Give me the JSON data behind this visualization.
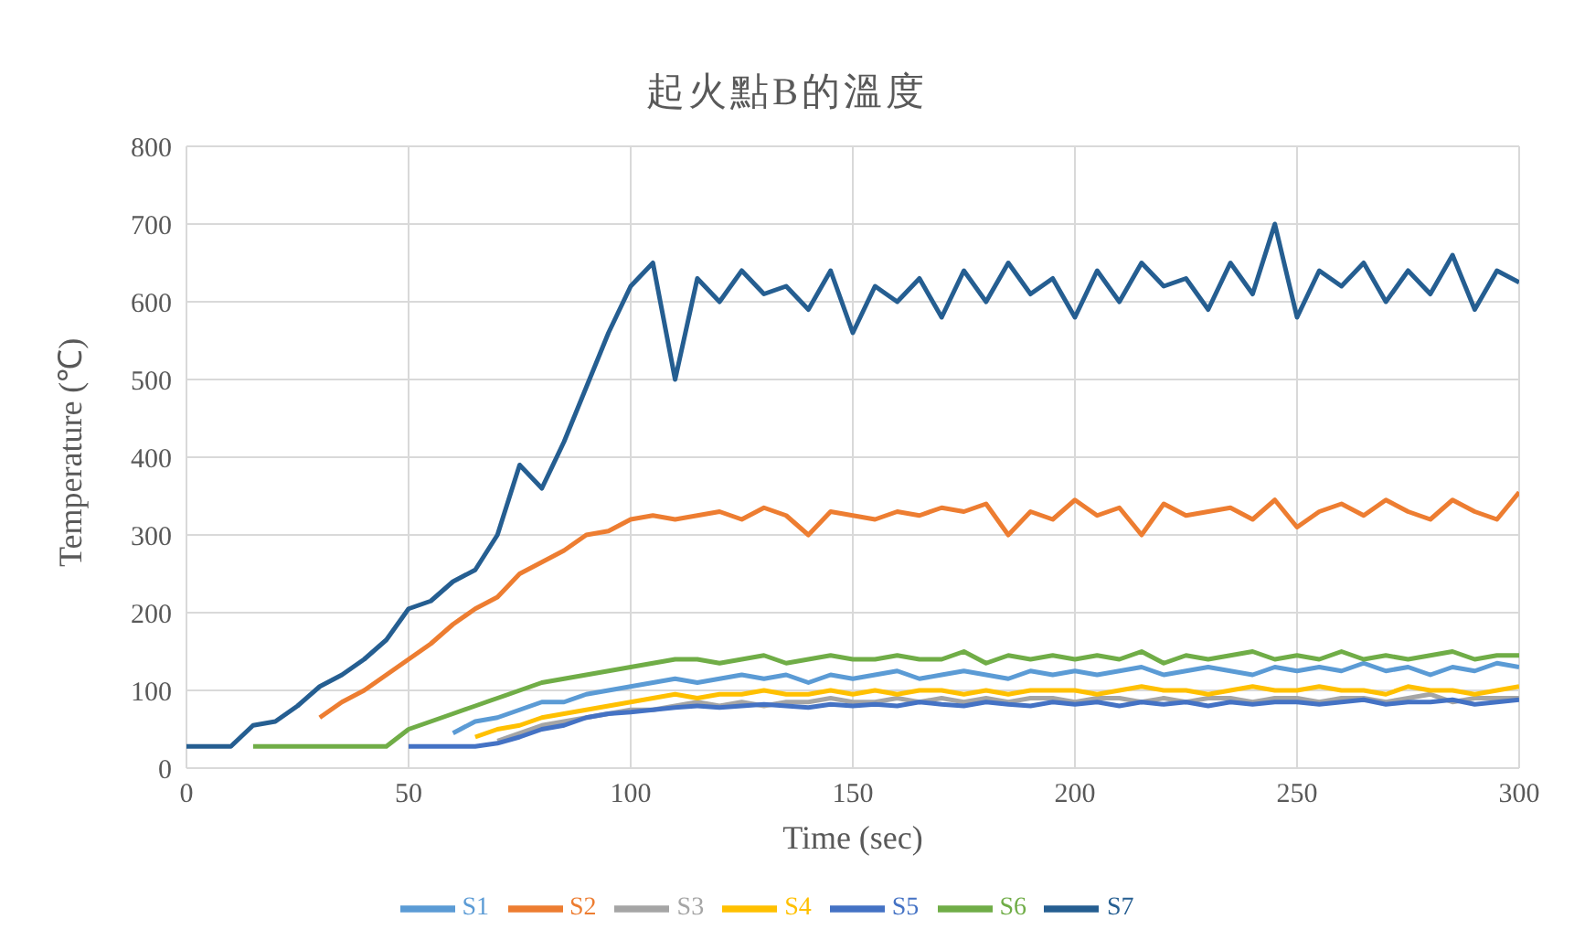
{
  "chart_data": {
    "type": "line",
    "title": "起火點B的溫度",
    "xlabel": "Time (sec)",
    "ylabel": "Temperature (℃)",
    "x": [
      0,
      5,
      10,
      15,
      20,
      25,
      30,
      35,
      40,
      45,
      50,
      55,
      60,
      65,
      70,
      75,
      80,
      85,
      90,
      95,
      100,
      105,
      110,
      115,
      120,
      125,
      130,
      135,
      140,
      145,
      150,
      155,
      160,
      165,
      170,
      175,
      180,
      185,
      190,
      195,
      200,
      205,
      210,
      215,
      220,
      225,
      230,
      235,
      240,
      245,
      250,
      255,
      260,
      265,
      270,
      275,
      280,
      285,
      290,
      295,
      300
    ],
    "xlim": [
      0,
      300
    ],
    "xticks": [
      0,
      50,
      100,
      150,
      200,
      250,
      300
    ],
    "ylim": [
      0,
      800
    ],
    "yticks": [
      0,
      100,
      200,
      300,
      400,
      500,
      600,
      700,
      800
    ],
    "grid": true,
    "legend": "bottom",
    "marker": "none",
    "line_style": "solid",
    "series": [
      {
        "name": "S1",
        "color": "#5b9bd5",
        "values": [
          null,
          null,
          null,
          null,
          null,
          null,
          null,
          null,
          null,
          null,
          null,
          null,
          45,
          60,
          65,
          75,
          85,
          85,
          95,
          100,
          105,
          110,
          115,
          110,
          115,
          120,
          115,
          120,
          110,
          120,
          115,
          120,
          125,
          115,
          120,
          125,
          120,
          115,
          125,
          120,
          125,
          120,
          125,
          130,
          120,
          125,
          130,
          125,
          120,
          130,
          125,
          130,
          125,
          135,
          125,
          130,
          120,
          130,
          125,
          135,
          130
        ]
      },
      {
        "name": "S2",
        "color": "#ed7d31",
        "values": [
          null,
          null,
          null,
          null,
          null,
          null,
          65,
          85,
          100,
          120,
          140,
          160,
          185,
          205,
          220,
          250,
          265,
          280,
          300,
          305,
          320,
          325,
          320,
          325,
          330,
          320,
          335,
          325,
          300,
          330,
          325,
          320,
          330,
          325,
          335,
          330,
          340,
          300,
          330,
          320,
          345,
          325,
          335,
          300,
          340,
          325,
          330,
          335,
          320,
          345,
          310,
          330,
          340,
          325,
          345,
          330,
          320,
          345,
          330,
          320,
          355
        ]
      },
      {
        "name": "S3",
        "color": "#a5a5a5",
        "values": [
          null,
          null,
          null,
          null,
          null,
          null,
          null,
          null,
          null,
          null,
          null,
          null,
          null,
          null,
          35,
          45,
          55,
          60,
          65,
          70,
          75,
          75,
          80,
          85,
          80,
          85,
          80,
          85,
          85,
          90,
          85,
          85,
          90,
          85,
          90,
          85,
          90,
          85,
          90,
          90,
          85,
          90,
          90,
          85,
          90,
          85,
          90,
          90,
          85,
          90,
          90,
          85,
          90,
          90,
          85,
          90,
          95,
          85,
          90,
          90,
          90
        ]
      },
      {
        "name": "S4",
        "color": "#ffc000",
        "values": [
          null,
          null,
          null,
          null,
          null,
          null,
          null,
          null,
          null,
          null,
          null,
          null,
          null,
          40,
          50,
          55,
          65,
          70,
          75,
          80,
          85,
          90,
          95,
          90,
          95,
          95,
          100,
          95,
          95,
          100,
          95,
          100,
          95,
          100,
          100,
          95,
          100,
          95,
          100,
          100,
          100,
          95,
          100,
          105,
          100,
          100,
          95,
          100,
          105,
          100,
          100,
          105,
          100,
          100,
          95,
          105,
          100,
          100,
          95,
          100,
          105
        ]
      },
      {
        "name": "S5",
        "color": "#4472c4",
        "values": [
          null,
          null,
          null,
          null,
          null,
          null,
          null,
          null,
          null,
          null,
          28,
          28,
          28,
          28,
          32,
          40,
          50,
          55,
          65,
          70,
          72,
          75,
          78,
          80,
          78,
          80,
          82,
          80,
          78,
          82,
          80,
          82,
          80,
          85,
          82,
          80,
          85,
          82,
          80,
          85,
          82,
          85,
          80,
          85,
          82,
          85,
          80,
          85,
          82,
          85,
          85,
          82,
          85,
          88,
          82,
          85,
          85,
          88,
          82,
          85,
          88
        ]
      },
      {
        "name": "S6",
        "color": "#70ad47",
        "values": [
          null,
          null,
          null,
          28,
          28,
          28,
          28,
          28,
          28,
          28,
          50,
          60,
          70,
          80,
          90,
          100,
          110,
          115,
          120,
          125,
          130,
          135,
          140,
          140,
          135,
          140,
          145,
          135,
          140,
          145,
          140,
          140,
          145,
          140,
          140,
          150,
          135,
          145,
          140,
          145,
          140,
          145,
          140,
          150,
          135,
          145,
          140,
          145,
          150,
          140,
          145,
          140,
          150,
          140,
          145,
          140,
          145,
          150,
          140,
          145,
          145
        ]
      },
      {
        "name": "S7",
        "color": "#255e91",
        "values": [
          28,
          28,
          28,
          55,
          60,
          80,
          105,
          120,
          140,
          165,
          205,
          215,
          240,
          255,
          300,
          390,
          360,
          420,
          490,
          560,
          620,
          650,
          500,
          630,
          600,
          640,
          610,
          620,
          590,
          640,
          560,
          620,
          600,
          630,
          580,
          640,
          600,
          650,
          610,
          630,
          580,
          640,
          600,
          650,
          620,
          630,
          590,
          650,
          610,
          700,
          580,
          640,
          620,
          650,
          600,
          640,
          610,
          660,
          590,
          640,
          625
        ]
      }
    ]
  }
}
